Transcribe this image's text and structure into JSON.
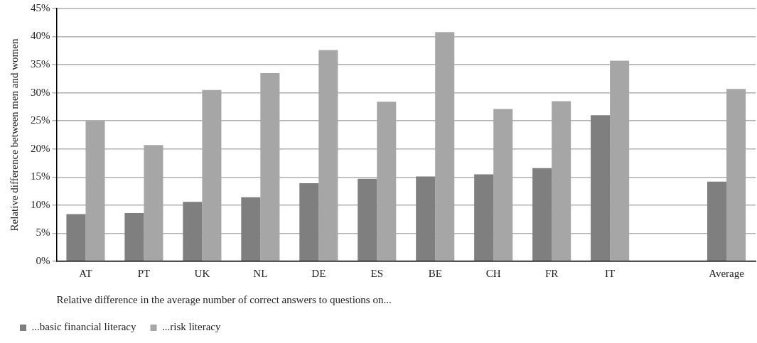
{
  "chart_data": {
    "type": "bar",
    "xlabel": "Relative difference in the average number of correct answers to questions on...",
    "ylabel": "Relative difference between men and women",
    "categories": [
      "AT",
      "PT",
      "UK",
      "NL",
      "DE",
      "ES",
      "BE",
      "CH",
      "FR",
      "IT",
      null,
      "Average"
    ],
    "series": [
      {
        "name": "...basic financial literacy",
        "color": "#7f7f7f",
        "values": [
          8.4,
          8.6,
          10.6,
          11.4,
          13.9,
          14.7,
          15.1,
          15.5,
          16.6,
          26.0,
          null,
          14.2
        ]
      },
      {
        "name": "...risk literacy",
        "color": "#a6a6a6",
        "values": [
          25.0,
          20.7,
          30.5,
          33.5,
          37.6,
          28.4,
          40.8,
          27.1,
          28.5,
          35.7,
          null,
          30.7
        ]
      }
    ],
    "ylim": [
      0,
      45
    ],
    "yticks": [
      {
        "value": 0,
        "label": "0%"
      },
      {
        "value": 5,
        "label": "5%"
      },
      {
        "value": 10,
        "label": "10%"
      },
      {
        "value": 15,
        "label": "15%"
      },
      {
        "value": 20,
        "label": "20%"
      },
      {
        "value": 25,
        "label": "25%"
      },
      {
        "value": 30,
        "label": "30%"
      },
      {
        "value": 35,
        "label": "35%"
      },
      {
        "value": 40,
        "label": "40%"
      },
      {
        "value": 45,
        "label": "45%"
      }
    ],
    "grid": "y",
    "legend": "bottom"
  }
}
